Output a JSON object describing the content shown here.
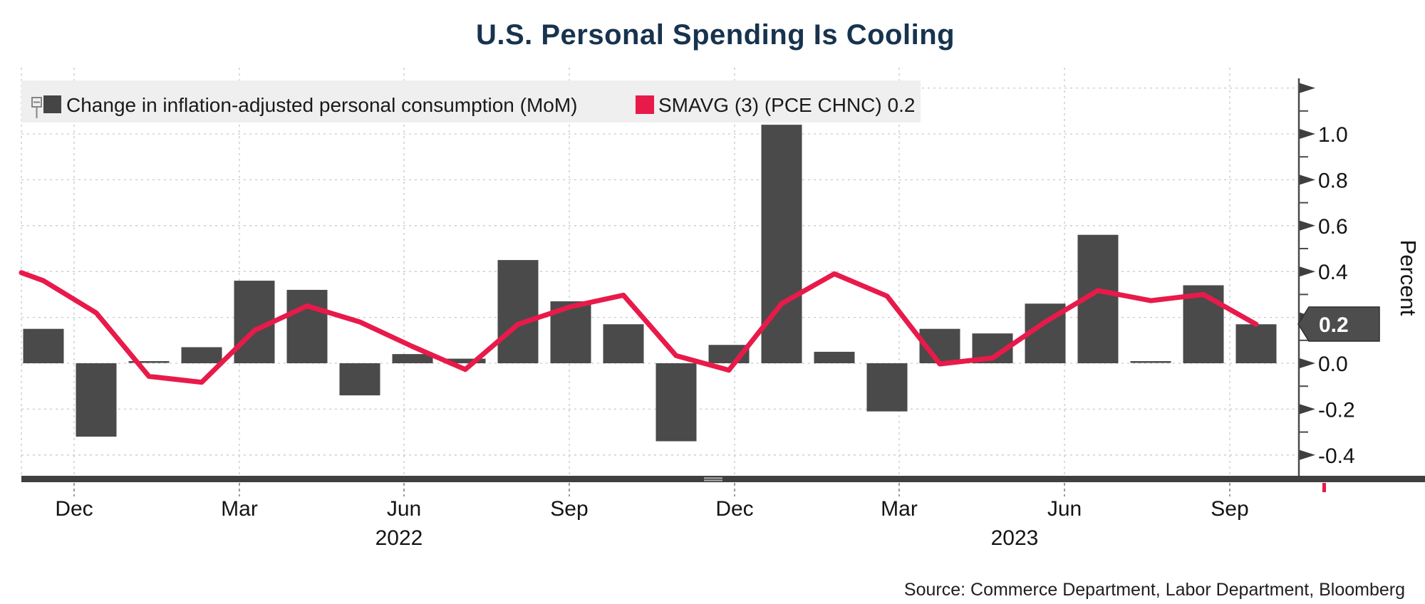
{
  "title": "U.S. Personal Spending Is Cooling",
  "legend": {
    "series1_label": "Change in inflation-adjusted personal consumption (MoM)",
    "series2_label": "SMAVG (3) (PCE CHNC) 0.2"
  },
  "axis": {
    "y_title": "Percent",
    "y_tick_labels": [
      "1.0",
      "0.8",
      "0.6",
      "0.4",
      "0.2",
      "0.0",
      "-0.2",
      "-0.4"
    ],
    "x_tick_labels": [
      "Dec",
      "Mar",
      "Jun",
      "Sep",
      "Dec",
      "Mar",
      "Jun",
      "Sep"
    ],
    "x_year_labels": [
      "2022",
      "2023"
    ],
    "value_tag": "0.2"
  },
  "source": "Source: Commerce Department, Labor Department, Bloomberg",
  "colors": {
    "bar": "#4a4a4a",
    "line": "#e81a4a",
    "title": "#17334e",
    "legend_band": "#efefef",
    "axis": "#3f3f3f",
    "tag_bg": "#4d4d4d",
    "grid_h": "#c9c9c9",
    "grid_v": "#c6d2d6"
  },
  "chart_data": {
    "type": "bar",
    "title": "U.S. Personal Spending Is Cooling",
    "xlabel": "",
    "ylabel": "Percent",
    "ylim": [
      -0.55,
      1.3
    ],
    "grid": true,
    "legend_position": "top-left",
    "categories": [
      "Nov 2021",
      "Dec 2021",
      "Jan 2022",
      "Feb 2022",
      "Mar 2022",
      "Apr 2022",
      "May 2022",
      "Jun 2022",
      "Jul 2022",
      "Aug 2022",
      "Sep 2022",
      "Oct 2022",
      "Nov 2022",
      "Dec 2022",
      "Jan 2023",
      "Feb 2023",
      "Mar 2023",
      "Apr 2023",
      "May 2023",
      "Jun 2023",
      "Jul 2023",
      "Aug 2023",
      "Sep 2023",
      "Oct 2023"
    ],
    "x_axis_tick_labels": [
      "Dec",
      "Mar",
      "Jun",
      "Sep",
      "Dec",
      "Mar",
      "Jun",
      "Sep"
    ],
    "series": [
      {
        "name": "Change in inflation-adjusted personal consumption (MoM)",
        "type": "bar",
        "values": [
          0.15,
          -0.32,
          0.0,
          0.07,
          0.36,
          0.32,
          -0.14,
          0.04,
          0.02,
          0.45,
          0.27,
          0.17,
          -0.34,
          0.08,
          1.04,
          0.05,
          -0.21,
          0.15,
          0.13,
          0.26,
          0.56,
          0.0,
          0.34,
          0.17
        ]
      },
      {
        "name": "SMAVG (3) (PCE CHNC)",
        "type": "line",
        "last_value_label": "0.2",
        "values": [
          0.36,
          0.22,
          -0.057,
          -0.083,
          0.143,
          0.25,
          0.18,
          0.073,
          -0.027,
          0.17,
          0.247,
          0.297,
          0.033,
          -0.03,
          0.26,
          0.39,
          0.293,
          -0.003,
          0.023,
          0.18,
          0.317,
          0.273,
          0.3,
          0.17
        ]
      }
    ]
  }
}
